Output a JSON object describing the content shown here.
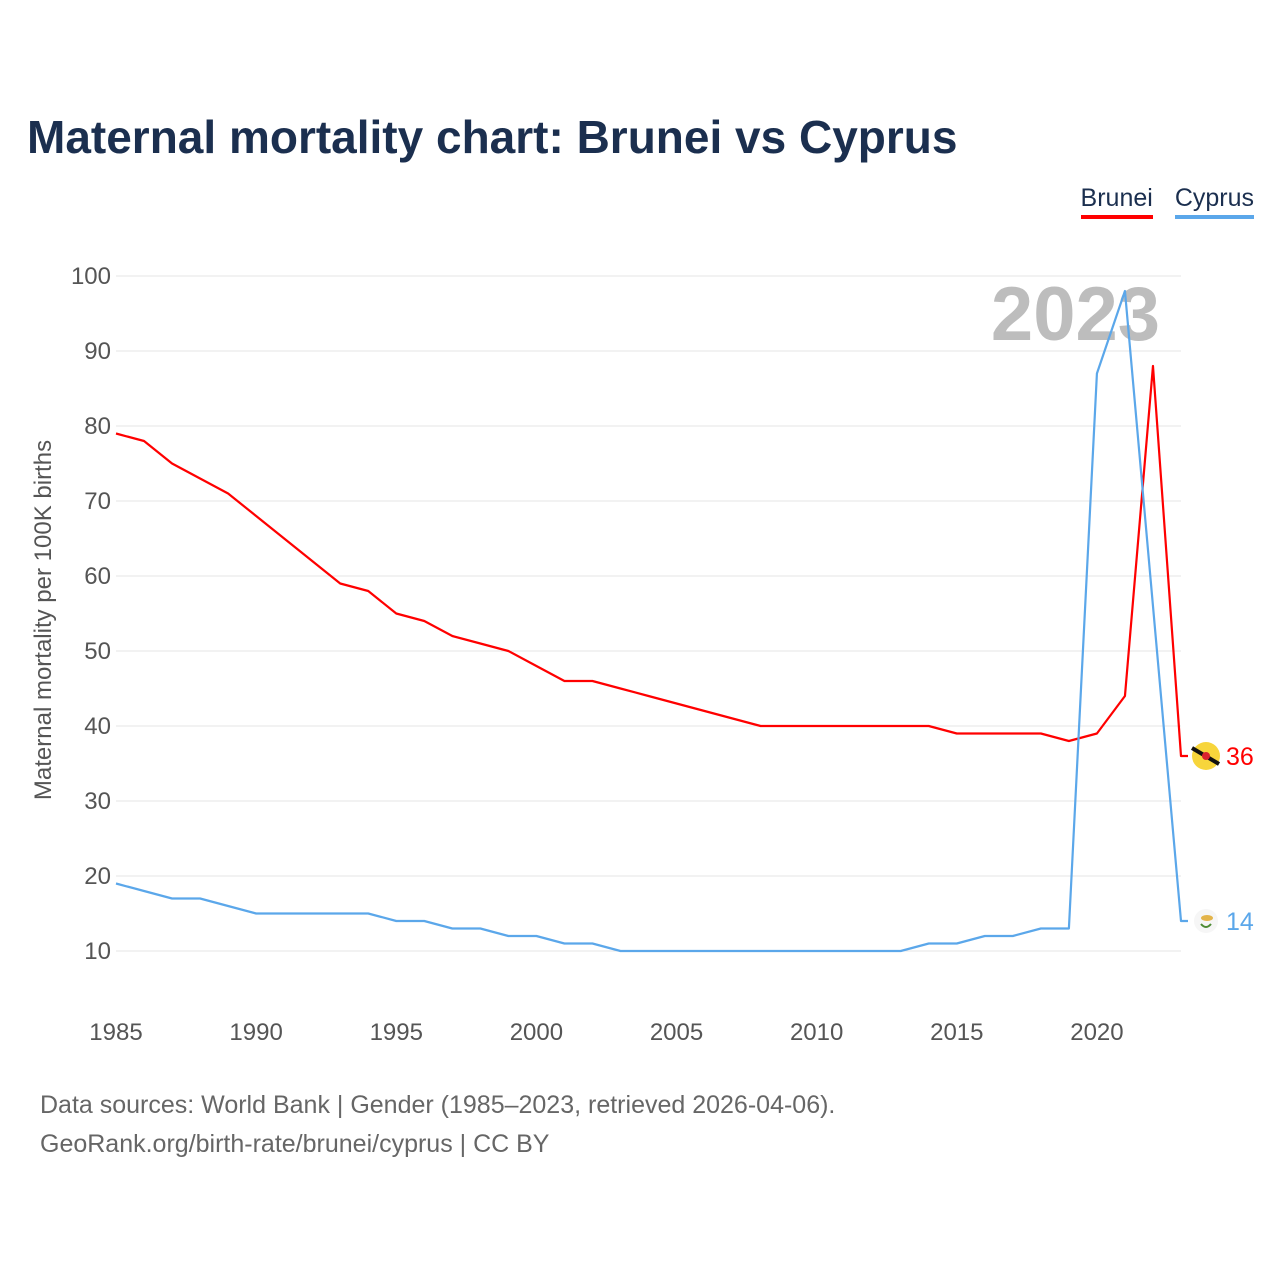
{
  "chart_data": {
    "type": "line",
    "title": "Maternal mortality chart: Brunei vs Cyprus",
    "xlabel": "",
    "ylabel": "Maternal mortality per 100K births",
    "xlim": [
      1985,
      2023
    ],
    "ylim": [
      5,
      100
    ],
    "xticks": [
      1985,
      1990,
      1995,
      2000,
      2005,
      2010,
      2015,
      2020
    ],
    "yticks": [
      10,
      20,
      30,
      40,
      50,
      60,
      70,
      80,
      90,
      100
    ],
    "grid": true,
    "legend_placement": "top-right",
    "year_watermark": "2023",
    "x": [
      1985,
      1986,
      1987,
      1988,
      1989,
      1990,
      1991,
      1992,
      1993,
      1994,
      1995,
      1996,
      1997,
      1998,
      1999,
      2000,
      2001,
      2002,
      2003,
      2004,
      2005,
      2006,
      2007,
      2008,
      2009,
      2010,
      2011,
      2012,
      2013,
      2014,
      2015,
      2016,
      2017,
      2018,
      2019,
      2020,
      2021,
      2022,
      2023
    ],
    "series": [
      {
        "name": "Brunei",
        "color": "#ff0000",
        "end_label": "36",
        "values": [
          79,
          78,
          75,
          73,
          71,
          68,
          65,
          62,
          59,
          58,
          55,
          54,
          52,
          51,
          50,
          48,
          46,
          46,
          45,
          44,
          43,
          42,
          41,
          40,
          40,
          40,
          40,
          40,
          40,
          40,
          39,
          39,
          39,
          39,
          38,
          39,
          44,
          88,
          36
        ]
      },
      {
        "name": "Cyprus",
        "color": "#5ba7ea",
        "end_label": "14",
        "values": [
          19,
          18,
          17,
          17,
          16,
          15,
          15,
          15,
          15,
          15,
          14,
          14,
          13,
          13,
          12,
          12,
          11,
          11,
          10,
          10,
          10,
          10,
          10,
          10,
          10,
          10,
          10,
          10,
          10,
          11,
          11,
          12,
          12,
          13,
          13,
          87,
          98,
          56,
          14
        ]
      }
    ]
  },
  "footer": {
    "line1": "Data sources: World Bank | Gender (1985–2023, retrieved 2026-04-06).",
    "line2": "GeoRank.org/birth-rate/brunei/cyprus | CC BY"
  }
}
